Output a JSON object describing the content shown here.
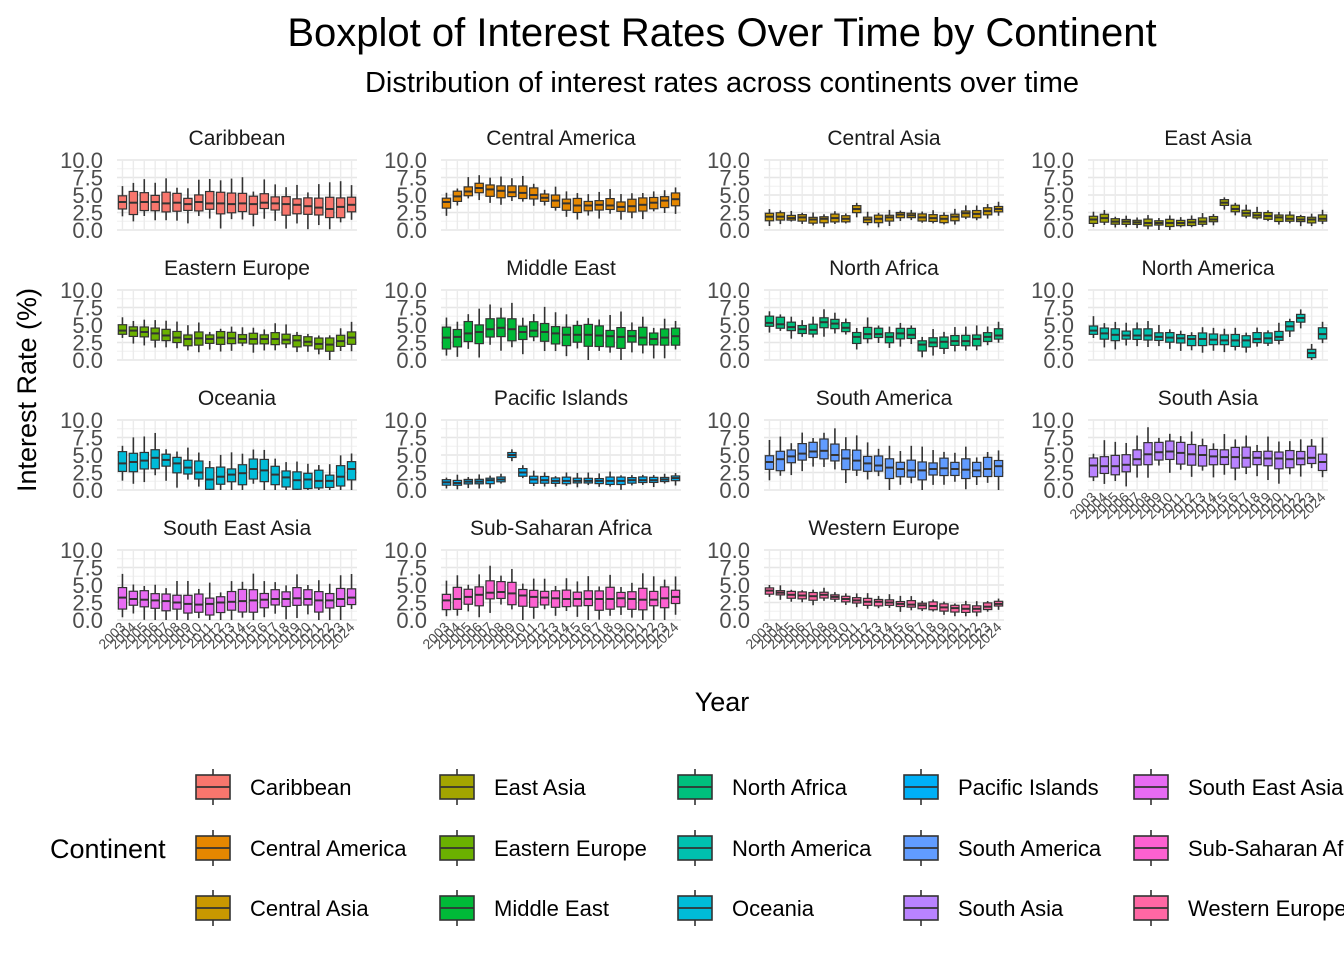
{
  "chart_data": {
    "type": "boxplot",
    "title": "Boxplot of Interest Rates Over Time by Continent",
    "subtitle": "Distribution of interest rates across continents over time",
    "xlabel": "Year",
    "ylabel": "Interest Rate (%)",
    "ylim": [
      0,
      10
    ],
    "y_ticks": [
      "0.0",
      "2.5",
      "5.0",
      "7.5",
      "10.0"
    ],
    "years": [
      "2003",
      "2004",
      "2005",
      "2006",
      "2007",
      "2008",
      "2009",
      "2010",
      "2011",
      "2012",
      "2013",
      "2014",
      "2015",
      "2016",
      "2017",
      "2018",
      "2019",
      "2020",
      "2021",
      "2022",
      "2023",
      "2024"
    ],
    "grid": true,
    "legend": {
      "title": "Continent",
      "position": "bottom",
      "items": [
        "Caribbean",
        "Central America",
        "Central Asia",
        "East Asia",
        "Eastern Europe",
        "Middle East",
        "North Africa",
        "North America",
        "Oceania",
        "Pacific Islands",
        "South America",
        "South Asia",
        "South East Asia",
        "Sub-Saharan Africa",
        "Western Europe"
      ]
    },
    "panels": [
      {
        "name": "Caribbean",
        "color": "#F8766D",
        "median": [
          4.0,
          3.9,
          4.0,
          4.0,
          3.8,
          3.9,
          3.7,
          4.0,
          3.8,
          3.8,
          3.7,
          3.8,
          3.7,
          3.9,
          3.8,
          3.7,
          3.6,
          3.4,
          3.2,
          3.0,
          3.3,
          3.6
        ]
      },
      {
        "name": "Central America",
        "color": "#E58700",
        "median": [
          4.0,
          4.8,
          5.5,
          6.0,
          5.8,
          5.6,
          5.4,
          5.3,
          5.0,
          4.6,
          4.2,
          3.8,
          3.5,
          3.5,
          3.6,
          3.5,
          3.3,
          3.4,
          3.6,
          3.9,
          4.2,
          4.4
        ]
      },
      {
        "name": "Central Asia",
        "color": "#C99800",
        "median": [
          1.9,
          1.9,
          1.7,
          1.8,
          1.5,
          1.6,
          1.7,
          1.6,
          3.0,
          1.5,
          1.6,
          1.8,
          2.2,
          2.1,
          1.8,
          1.7,
          1.6,
          1.9,
          2.4,
          2.3,
          2.7,
          3.0
        ]
      },
      {
        "name": "East Asia",
        "color": "#A3A500",
        "median": [
          1.5,
          1.7,
          1.2,
          1.2,
          1.1,
          1.0,
          1.0,
          1.0,
          1.0,
          1.1,
          1.2,
          1.5,
          3.9,
          3.0,
          2.4,
          2.1,
          2.0,
          1.8,
          1.6,
          1.5,
          1.5,
          1.6
        ]
      },
      {
        "name": "Eastern Europe",
        "color": "#6BB100",
        "median": [
          4.2,
          4.2,
          4.0,
          3.8,
          3.5,
          3.2,
          3.0,
          3.1,
          3.0,
          3.2,
          3.1,
          3.0,
          3.0,
          3.0,
          3.0,
          2.9,
          2.8,
          2.6,
          2.3,
          2.2,
          2.7,
          3.2
        ]
      },
      {
        "name": "Middle East",
        "color": "#00BA38",
        "median": [
          3.2,
          3.3,
          3.8,
          4.0,
          4.4,
          4.6,
          4.4,
          4.0,
          4.2,
          4.0,
          3.8,
          3.6,
          3.6,
          3.6,
          3.5,
          3.4,
          3.3,
          3.4,
          3.2,
          3.0,
          3.2,
          3.4
        ]
      },
      {
        "name": "North Africa",
        "color": "#00BF7D",
        "median": [
          5.3,
          5.1,
          4.7,
          4.4,
          4.3,
          5.4,
          5.2,
          4.6,
          3.3,
          3.7,
          3.7,
          3.3,
          3.8,
          3.6,
          2.2,
          2.5,
          2.6,
          2.7,
          2.7,
          3.0,
          3.3,
          3.5
        ]
      },
      {
        "name": "North America",
        "color": "#00C0AF",
        "median": [
          4.2,
          3.8,
          3.6,
          3.5,
          3.5,
          3.5,
          3.3,
          3.2,
          3.1,
          3.0,
          3.0,
          2.9,
          2.8,
          2.8,
          2.8,
          3.0,
          3.1,
          3.3,
          4.8,
          6.0,
          1.0,
          3.7
        ]
      },
      {
        "name": "Oceania",
        "color": "#00BCD8",
        "median": [
          3.8,
          4.0,
          4.2,
          4.6,
          4.3,
          3.8,
          3.2,
          2.5,
          1.5,
          1.9,
          2.2,
          2.4,
          3.0,
          2.8,
          2.2,
          1.8,
          1.4,
          1.5,
          1.3,
          1.3,
          1.9,
          3.0
        ]
      },
      {
        "name": "Pacific Islands",
        "color": "#00B0F6",
        "median": [
          1.1,
          1.0,
          1.2,
          1.2,
          1.4,
          1.5,
          5.0,
          2.5,
          1.5,
          1.4,
          1.3,
          1.3,
          1.3,
          1.3,
          1.3,
          1.3,
          1.3,
          1.4,
          1.4,
          1.4,
          1.5,
          1.7
        ]
      },
      {
        "name": "South America",
        "color": "#619CFF",
        "median": [
          4.0,
          4.4,
          4.8,
          5.2,
          5.5,
          5.6,
          5.0,
          4.5,
          4.2,
          3.8,
          3.5,
          3.2,
          3.0,
          2.8,
          2.8,
          3.0,
          3.1,
          3.0,
          2.9,
          2.8,
          3.0,
          3.4
        ]
      },
      {
        "name": "South Asia",
        "color": "#B983FF",
        "median": [
          3.5,
          3.4,
          3.4,
          3.6,
          4.4,
          5.1,
          5.4,
          5.5,
          5.3,
          5.1,
          5.0,
          4.8,
          4.7,
          4.7,
          4.6,
          4.6,
          4.5,
          4.5,
          4.4,
          4.5,
          4.6,
          4.0
        ]
      },
      {
        "name": "South East Asia",
        "color": "#E76BF3",
        "median": [
          3.2,
          3.0,
          2.9,
          2.8,
          2.7,
          2.5,
          2.3,
          2.2,
          2.3,
          2.5,
          2.6,
          2.7,
          2.8,
          2.9,
          3.0,
          3.0,
          3.1,
          3.0,
          2.8,
          2.8,
          3.0,
          3.2
        ]
      },
      {
        "name": "Sub-Saharan Africa",
        "color": "#FD61D1",
        "median": [
          2.8,
          3.0,
          3.3,
          3.6,
          3.9,
          4.0,
          3.8,
          3.5,
          3.3,
          3.2,
          3.1,
          3.0,
          3.0,
          3.0,
          3.0,
          3.0,
          3.1,
          3.0,
          2.9,
          2.9,
          3.1,
          3.3
        ]
      },
      {
        "name": "Western Europe",
        "color": "#FF67A4",
        "median": [
          4.2,
          3.9,
          3.6,
          3.5,
          3.4,
          3.6,
          3.3,
          3.0,
          2.8,
          2.6,
          2.6,
          2.5,
          2.3,
          2.2,
          2.1,
          2.0,
          1.8,
          1.7,
          1.6,
          1.6,
          1.9,
          2.3
        ]
      }
    ]
  }
}
